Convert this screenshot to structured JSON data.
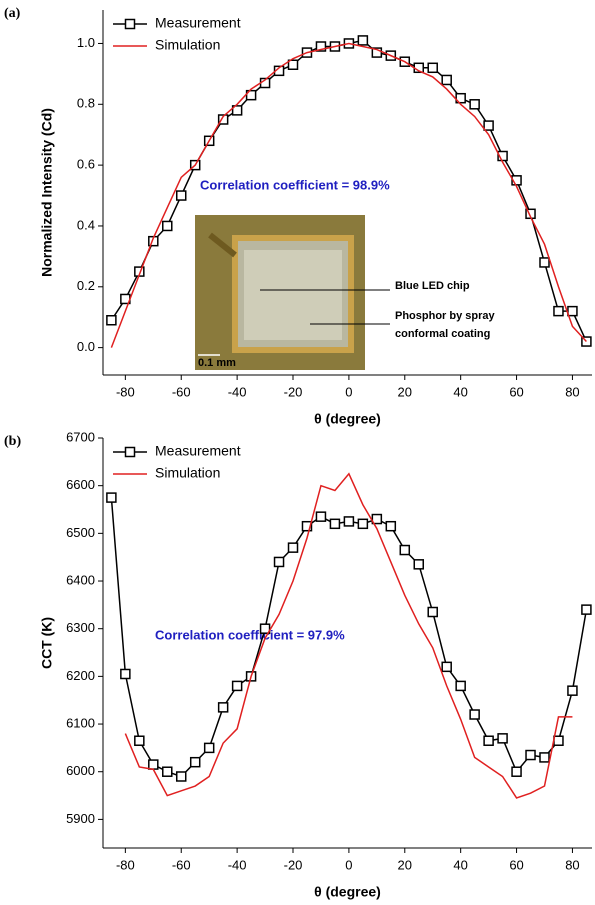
{
  "chart_data": [
    {
      "type": "line",
      "panel_label": "(a)",
      "x_label": "θ (degree)",
      "y_label": "Normalized Intensity (Cd)",
      "annotation": "Correlation coefficient = 98.9%",
      "inset": {
        "labels": [
          "Blue LED chip",
          "Phosphor by spray",
          "conformal coating",
          "0.1 mm"
        ]
      },
      "x": [
        -85,
        -80,
        -75,
        -70,
        -65,
        -60,
        -55,
        -50,
        -45,
        -40,
        -35,
        -30,
        -25,
        -20,
        -15,
        -10,
        -5,
        0,
        5,
        10,
        15,
        20,
        25,
        30,
        35,
        40,
        45,
        50,
        55,
        60,
        65,
        70,
        75,
        80,
        85
      ],
      "series": [
        {
          "name": "Measurement",
          "color": "#000000",
          "marker": "square",
          "values": [
            0.09,
            0.16,
            0.25,
            0.35,
            0.4,
            0.5,
            0.6,
            0.68,
            0.75,
            0.78,
            0.83,
            0.87,
            0.91,
            0.93,
            0.97,
            0.99,
            0.99,
            1.0,
            1.01,
            0.97,
            0.96,
            0.94,
            0.92,
            0.92,
            0.88,
            0.82,
            0.8,
            0.73,
            0.63,
            0.55,
            0.44,
            0.28,
            0.12,
            0.12,
            0.02
          ]
        },
        {
          "name": "Simulation",
          "color": "#e02020",
          "marker": "none",
          "values": [
            0.0,
            0.12,
            0.24,
            0.36,
            0.46,
            0.56,
            0.6,
            0.68,
            0.76,
            0.8,
            0.85,
            0.88,
            0.92,
            0.95,
            0.97,
            0.98,
            0.99,
            1.0,
            0.99,
            0.98,
            0.96,
            0.94,
            0.91,
            0.89,
            0.85,
            0.8,
            0.76,
            0.7,
            0.61,
            0.53,
            0.43,
            0.34,
            0.2,
            0.07,
            0.02
          ]
        }
      ],
      "xlim": [
        -88,
        87
      ],
      "xticks": [
        -80,
        -60,
        -40,
        -20,
        0,
        20,
        40,
        60,
        80
      ],
      "ylim": [
        -0.09,
        1.11
      ],
      "yticks": [
        {
          "value": 0,
          "label": "0.0"
        },
        0.2,
        0.4,
        0.6,
        0.8,
        {
          "value": 1,
          "label": "1.0"
        }
      ],
      "legend": "top-left"
    },
    {
      "type": "line",
      "panel_label": "(b)",
      "x_label": "θ (degree)",
      "y_label": "CCT (K)",
      "annotation": "Correlation coefficient = 97.9%",
      "x": [
        -85,
        -80,
        -75,
        -70,
        -65,
        -60,
        -55,
        -50,
        -45,
        -40,
        -35,
        -30,
        -25,
        -20,
        -15,
        -10,
        -5,
        0,
        5,
        10,
        15,
        20,
        25,
        30,
        35,
        40,
        45,
        50,
        55,
        60,
        65,
        70,
        75,
        80,
        85
      ],
      "series": [
        {
          "name": "Measurement",
          "color": "#000000",
          "marker": "square",
          "values": [
            6575,
            6205,
            6065,
            6015,
            6000,
            5990,
            6020,
            6050,
            6135,
            6180,
            6200,
            6300,
            6440,
            6470,
            6515,
            6535,
            6520,
            6525,
            6520,
            6530,
            6515,
            6465,
            6435,
            6335,
            6220,
            6180,
            6120,
            6065,
            6070,
            6000,
            6035,
            6030,
            6065,
            6170,
            6340
          ]
        },
        {
          "name": "Simulation",
          "color": "#e02020",
          "marker": "none",
          "values": [
            null,
            6080,
            6010,
            6005,
            5950,
            5960,
            5970,
            5990,
            6060,
            6090,
            6200,
            6280,
            6330,
            6400,
            6490,
            6600,
            6590,
            6625,
            6560,
            6510,
            6440,
            6370,
            6310,
            6260,
            6180,
            6110,
            6030,
            6010,
            5990,
            5945,
            5955,
            5970,
            6115,
            6115,
            null
          ]
        }
      ],
      "xlim": [
        -88,
        87
      ],
      "xticks": [
        -80,
        -60,
        -40,
        -20,
        0,
        20,
        40,
        60,
        80
      ],
      "ylim": [
        5840,
        6700
      ],
      "yticks": [
        5900,
        6000,
        6100,
        6200,
        6300,
        6400,
        6500,
        6600,
        6700
      ],
      "legend": "top-left"
    }
  ]
}
